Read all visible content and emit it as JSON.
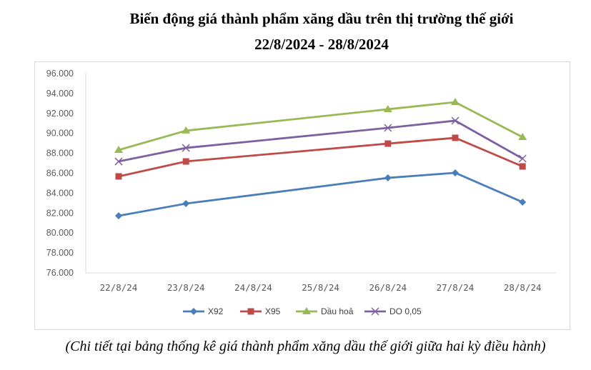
{
  "chart_data": {
    "type": "line",
    "title": "Biến động giá thành phẩm xăng dầu trên thị trường thế giới",
    "subtitle": "22/8/2024 - 28/8/2024",
    "categories": [
      "22/8/24",
      "23/8/24",
      "24/8/24",
      "25/8/24",
      "26/8/24",
      "27/8/24",
      "28/8/24"
    ],
    "ylim": [
      76000,
      96000
    ],
    "yticks": [
      "76.000",
      "78.000",
      "80.000",
      "82.000",
      "84.000",
      "86.000",
      "88.000",
      "90.000",
      "92.000",
      "94.000",
      "96.000"
    ],
    "grid": false,
    "legend": "bottom",
    "series": [
      {
        "name": "X92",
        "color": "#4a7ebb",
        "marker": "diamond",
        "values": [
          81730,
          82950,
          null,
          null,
          85530,
          86040,
          83100
        ]
      },
      {
        "name": "X95",
        "color": "#be4b48",
        "marker": "square",
        "values": [
          85680,
          87180,
          null,
          null,
          88970,
          89550,
          86680
        ]
      },
      {
        "name": "Dầu hoả",
        "color": "#98b954",
        "marker": "triangle",
        "values": [
          88330,
          90270,
          null,
          null,
          92420,
          93130,
          89620
        ]
      },
      {
        "name": "DO 0,05",
        "color": "#7d60a0",
        "marker": "x",
        "values": [
          87180,
          88540,
          null,
          null,
          90550,
          91270,
          87470
        ]
      }
    ]
  },
  "footnote": "(Chi tiết tại bảng thống kê giá thành phẩm xăng dầu thế giới giữa hai kỳ điều hành)"
}
